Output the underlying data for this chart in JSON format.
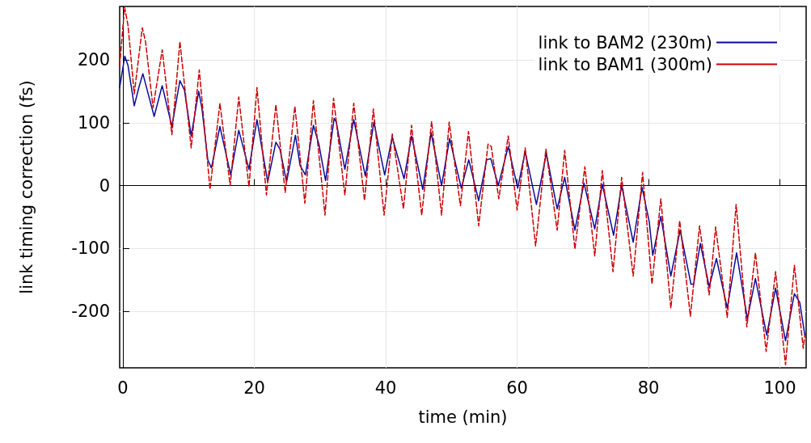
{
  "chart_data": {
    "type": "line",
    "xlabel": "time (min)",
    "ylabel": "link timing correction (fs)",
    "xlim": [
      -0.5,
      104
    ],
    "ylim": [
      -290,
      285
    ],
    "xticks": [
      0,
      20,
      40,
      60,
      80,
      100
    ],
    "yticks": [
      -200,
      -100,
      0,
      100,
      200
    ],
    "grid": true,
    "legend": "top right",
    "marker": "none",
    "series": [
      {
        "name": "link to BAM2 (230m)",
        "color": "#0a0a9a",
        "line_style": "solid",
        "x": [
          -0.5,
          0.28,
          0.77,
          1.72,
          2.42,
          3.03,
          4.75,
          5.97,
          7.45,
          8.67,
          9.36,
          10.39,
          11.53,
          12.02,
          12.92,
          13.46,
          14.76,
          16.4,
          17.63,
          19.18,
          20.4,
          22.04,
          23.28,
          23.89,
          24.91,
          26.26,
          26.96,
          27.77,
          29.0,
          29.82,
          30.84,
          32.15,
          32.48,
          33.78,
          35.13,
          36.9,
          38.2,
          39.84,
          40.98,
          42.79,
          43.93,
          45.64,
          46.91,
          48.5,
          49.73,
          51.5,
          52.64,
          54.15,
          55.37,
          55.99,
          57.14,
          58.65,
          60.09,
          61.23,
          62.94,
          64.45,
          66.1,
          67.24,
          68.8,
          70.18,
          71.82,
          72.97,
          74.69,
          75.91,
          77.67,
          79.02,
          80.12,
          80.65,
          81.88,
          83.4,
          84.82,
          86.47,
          86.87,
          87.89,
          89.24,
          90.34,
          91.99,
          93.41,
          95.06,
          96.28,
          98.0,
          99.35,
          100.86,
          102.21,
          103.03,
          103.8
        ],
        "values": [
          156,
          206,
          191,
          127,
          156,
          178,
          110,
          159,
          94,
          167,
          152,
          79,
          150,
          123,
          41,
          28,
          94,
          17,
          88,
          26,
          105,
          6,
          69,
          58,
          6,
          80,
          32,
          17,
          96,
          66,
          8,
          107,
          101,
          26,
          105,
          15,
          101,
          17,
          77,
          11,
          79,
          -6,
          84,
          0,
          75,
          -4,
          41,
          -24,
          41,
          43,
          0,
          62,
          -4,
          54,
          -30,
          51,
          -37,
          13,
          -71,
          4,
          -69,
          2,
          -79,
          0,
          -90,
          -3,
          -58,
          -111,
          -49,
          -144,
          -71,
          -157,
          -157,
          -92,
          -161,
          -116,
          -195,
          -107,
          -212,
          -148,
          -238,
          -163,
          -247,
          -172,
          -186,
          -238
        ]
      },
      {
        "name": "link to BAM1 (300m)",
        "color": "#cc0000",
        "line_style": "dashed",
        "x": [
          -0.5,
          0.25,
          0.77,
          1.72,
          2.94,
          3.44,
          4.58,
          5.98,
          7.45,
          8.67,
          10.39,
          11.62,
          13.25,
          14.76,
          16.32,
          17.63,
          19.18,
          20.4,
          21.84,
          23.28,
          24.7,
          26.17,
          27.69,
          28.99,
          30.76,
          32.06,
          33.78,
          35.13,
          36.77,
          38.12,
          39.75,
          41.0,
          42.7,
          43.93,
          45.48,
          46.99,
          48.5,
          49.66,
          51.37,
          52.6,
          54.15,
          55.58,
          56.07,
          57.21,
          58.65,
          60.0,
          61.23,
          62.82,
          64.38,
          66.1,
          67.24,
          68.8,
          70.31,
          71.82,
          72.97,
          74.6,
          75.91,
          77.67,
          79.1,
          80.53,
          81.88,
          83.4,
          84.75,
          86.38,
          87.77,
          89.24,
          90.22,
          91.99,
          93.34,
          94.97,
          96.28,
          97.91,
          99.35,
          100.86,
          102.21,
          103.56,
          103.8
        ],
        "values": [
          191,
          284,
          255,
          146,
          251,
          229,
          124,
          216,
          81,
          229,
          60,
          184,
          -6,
          131,
          0,
          141,
          -2,
          156,
          -15,
          129,
          -11,
          126,
          -28,
          135,
          -47,
          139,
          -15,
          131,
          -24,
          122,
          -47,
          82,
          -37,
          96,
          -47,
          102,
          -47,
          101,
          -32,
          86,
          -64,
          66,
          62,
          -21,
          79,
          -39,
          60,
          -96,
          58,
          -71,
          56,
          -101,
          30,
          -112,
          24,
          -137,
          13,
          -144,
          21,
          -157,
          -21,
          -195,
          -56,
          -208,
          -64,
          -174,
          -66,
          -210,
          -30,
          -225,
          -107,
          -264,
          -137,
          -285,
          -127,
          -259,
          -238
        ]
      }
    ]
  }
}
